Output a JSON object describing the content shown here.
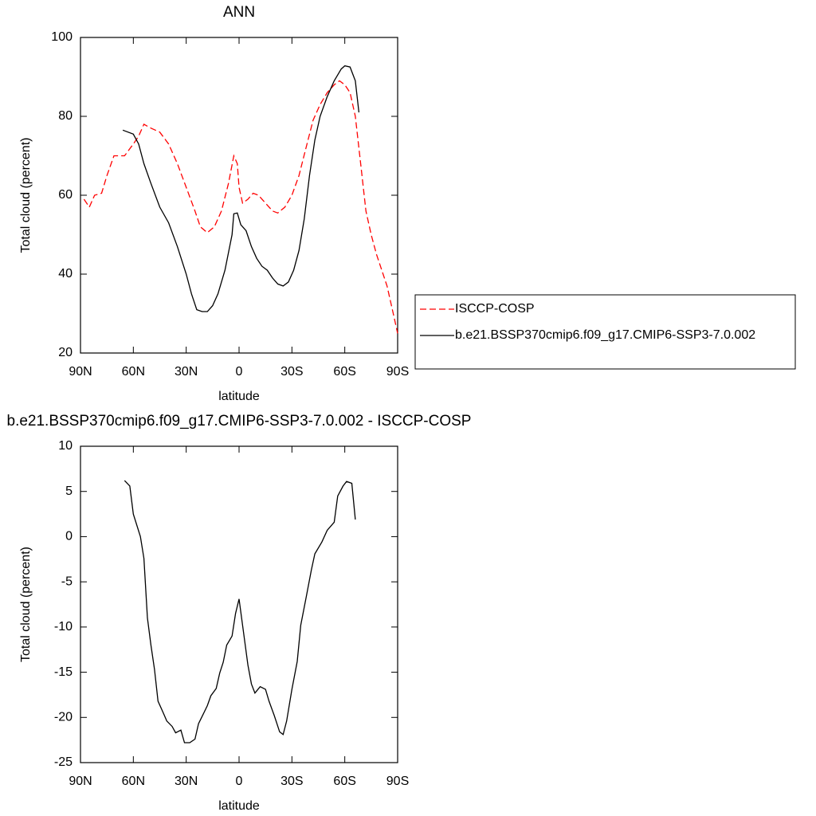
{
  "chart_data": [
    {
      "type": "line",
      "title": "ANN",
      "xlabel": "latitude",
      "ylabel": "Total cloud (percent)",
      "xlim": [
        90,
        -90
      ],
      "xticks": [
        {
          "value": 90,
          "label": "90N"
        },
        {
          "value": 60,
          "label": "60N"
        },
        {
          "value": 30,
          "label": "30N"
        },
        0,
        {
          "value": -30,
          "label": "30S"
        },
        {
          "value": -60,
          "label": "60S"
        },
        {
          "value": -90,
          "label": "90S"
        }
      ],
      "ylim": [
        20,
        100
      ],
      "yticks": [
        20,
        40,
        60,
        80,
        100
      ],
      "legend": "right",
      "series": [
        {
          "name": "ISCCP-COSP",
          "color": "#ff0000",
          "linestyle": "dashed",
          "x": [
            88,
            85,
            82,
            78,
            75,
            71,
            65,
            60,
            57,
            54,
            50,
            45,
            40,
            35,
            30,
            25,
            22,
            18,
            14,
            10,
            6,
            3,
            1,
            0,
            -2,
            -5,
            -8,
            -11,
            -15,
            -19,
            -22,
            -26,
            -30,
            -34,
            -38,
            -42,
            -46,
            -50,
            -54,
            -57,
            -60,
            -63,
            -66,
            -69,
            -72,
            -75,
            -78,
            -81,
            -84,
            -87,
            -90
          ],
          "values": [
            59,
            57,
            60,
            60.5,
            65,
            70,
            70,
            73,
            75,
            78,
            77,
            76,
            73,
            68,
            62,
            56,
            52,
            50.5,
            52,
            56,
            63,
            70,
            68,
            62,
            58,
            59,
            60.5,
            60,
            58,
            56,
            55.5,
            57,
            60,
            65,
            72,
            79,
            83,
            86,
            88,
            89,
            88,
            86,
            80,
            68,
            56,
            50,
            45,
            41,
            37,
            31,
            25
          ]
        },
        {
          "name": "b.e21.BSSP370cmip6.f09_g17.CMIP6-SSP3-7.0.002",
          "color": "#000000",
          "linestyle": "solid",
          "x": [
            66,
            60,
            57,
            54,
            50,
            45,
            40,
            35,
            30,
            27,
            24,
            21,
            18,
            15,
            12,
            8,
            4,
            3,
            1,
            -1,
            -4,
            -7,
            -10,
            -13,
            -16,
            -19,
            -22,
            -25,
            -28,
            -31,
            -34,
            -37,
            -40,
            -43,
            -46,
            -50,
            -54,
            -58,
            -60,
            -63,
            -66,
            -68
          ],
          "values": [
            76.5,
            75.5,
            73,
            68,
            63,
            57,
            53,
            47,
            40,
            35,
            31,
            30.5,
            30.5,
            32,
            35,
            41,
            50,
            55.3,
            55.5,
            52.5,
            51,
            47,
            44,
            42,
            41,
            39,
            37.5,
            37,
            38,
            41,
            46,
            54,
            65,
            74,
            80,
            85,
            89,
            92,
            92.8,
            92.5,
            89,
            81
          ]
        }
      ]
    },
    {
      "type": "line",
      "title": "b.e21.BSSP370cmip6.f09_g17.CMIP6-SSP3-7.0.002 - ISCCP-COSP",
      "xlabel": "latitude",
      "ylabel": "Total cloud (percent)",
      "xlim": [
        90,
        -90
      ],
      "xticks": [
        {
          "value": 90,
          "label": "90N"
        },
        {
          "value": 60,
          "label": "60N"
        },
        {
          "value": 30,
          "label": "30N"
        },
        0,
        {
          "value": -30,
          "label": "30S"
        },
        {
          "value": -60,
          "label": "60S"
        },
        {
          "value": -90,
          "label": "90S"
        }
      ],
      "ylim": [
        -25,
        10
      ],
      "yticks": [
        -25,
        -20,
        -15,
        -10,
        -5,
        0,
        5,
        10
      ],
      "series": [
        {
          "color": "#000000",
          "linestyle": "solid",
          "x": [
            65,
            62,
            60,
            56,
            54,
            52,
            50,
            48,
            46,
            43,
            41,
            38,
            36,
            33,
            31,
            28,
            25,
            23,
            20,
            18,
            16,
            13,
            11,
            9,
            7,
            4,
            2,
            0,
            -2,
            -5,
            -7,
            -9,
            -12,
            -15,
            -17,
            -20,
            -23,
            -25,
            -27,
            -30,
            -33,
            -35,
            -38,
            -41,
            -43,
            -47,
            -50,
            -54,
            -56,
            -59,
            -61,
            -64,
            -66
          ],
          "values": [
            6.2,
            5.6,
            2.5,
            0,
            -2.4,
            -9,
            -12,
            -14.7,
            -18.2,
            -19.5,
            -20.4,
            -21,
            -21.7,
            -21.4,
            -22.8,
            -22.8,
            -22.4,
            -20.7,
            -19.5,
            -18.7,
            -17.6,
            -16.8,
            -15.1,
            -13.9,
            -12,
            -11,
            -8.5,
            -6.9,
            -9.8,
            -14.2,
            -16.3,
            -17.3,
            -16.6,
            -16.9,
            -18.2,
            -19.8,
            -21.6,
            -21.9,
            -20.4,
            -16.9,
            -13.8,
            -9.8,
            -6.8,
            -3.7,
            -1.9,
            -0.6,
            0.7,
            1.6,
            4.5,
            5.6,
            6.1,
            5.9,
            1.9
          ]
        }
      ]
    }
  ]
}
